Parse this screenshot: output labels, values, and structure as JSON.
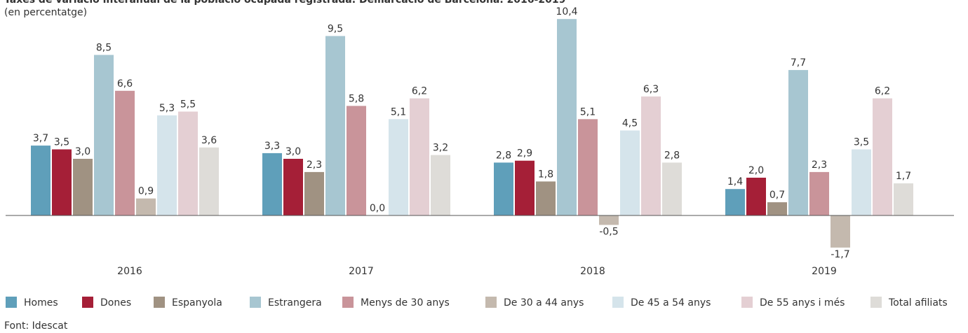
{
  "chart_data": {
    "type": "bar",
    "title": "Taxes de variació interanual de la població ocupada registrada. Demarcació de Barcelona. 2016-2019",
    "subtitle": "(en percentatge)",
    "source": "Font: Idescat",
    "categories": [
      "2016",
      "2017",
      "2018",
      "2019"
    ],
    "ylim": [
      -3,
      11
    ],
    "series": [
      {
        "name": "Homes",
        "color": "#5f9fba",
        "values": [
          3.7,
          3.3,
          2.8,
          1.4
        ],
        "value_labels": [
          "3,7",
          "3,3",
          "2,8",
          "1,4"
        ]
      },
      {
        "name": "Dones",
        "color": "#a51f37",
        "values": [
          3.5,
          3.0,
          2.9,
          2.0
        ],
        "value_labels": [
          "3,5",
          "3,0",
          "2,9",
          "2,0"
        ]
      },
      {
        "name": "Espanyola",
        "color": "#a09282",
        "values": [
          3.0,
          2.3,
          1.8,
          0.7
        ],
        "value_labels": [
          "3,0",
          "2,3",
          "1,8",
          "0,7"
        ]
      },
      {
        "name": "Estrangera",
        "color": "#a7c6d1",
        "values": [
          8.5,
          9.5,
          10.4,
          7.7
        ],
        "value_labels": [
          "8,5",
          "9,5",
          "10,4",
          "7,7"
        ]
      },
      {
        "name": "Menys de 30 anys",
        "color": "#c9949a",
        "values": [
          6.6,
          5.8,
          5.1,
          2.3
        ],
        "value_labels": [
          "6,6",
          "5,8",
          "5,1",
          "2,3"
        ]
      },
      {
        "name": "De 30 a 44 anys",
        "color": "#c4b9ae",
        "values": [
          0.9,
          0.0,
          -0.5,
          -1.7
        ],
        "value_labels": [
          "0,9",
          "0,0",
          "-0,5",
          "-1,7"
        ]
      },
      {
        "name": "De 45 a 54 anys",
        "color": "#d5e4eb",
        "values": [
          5.3,
          5.1,
          4.5,
          3.5
        ],
        "value_labels": [
          "5,3",
          "5,1",
          "4,5",
          "3,5"
        ]
      },
      {
        "name": "De 55 anys i més",
        "color": "#e4cfd3",
        "values": [
          5.5,
          6.2,
          6.3,
          6.2
        ],
        "value_labels": [
          "5,5",
          "6,2",
          "6,3",
          "6,2"
        ]
      },
      {
        "name": "Total afiliats",
        "color": "#dedcd8",
        "values": [
          3.6,
          3.2,
          2.8,
          1.7
        ],
        "value_labels": [
          "3,6",
          "3,2",
          "2,8",
          "1,7"
        ]
      }
    ]
  }
}
